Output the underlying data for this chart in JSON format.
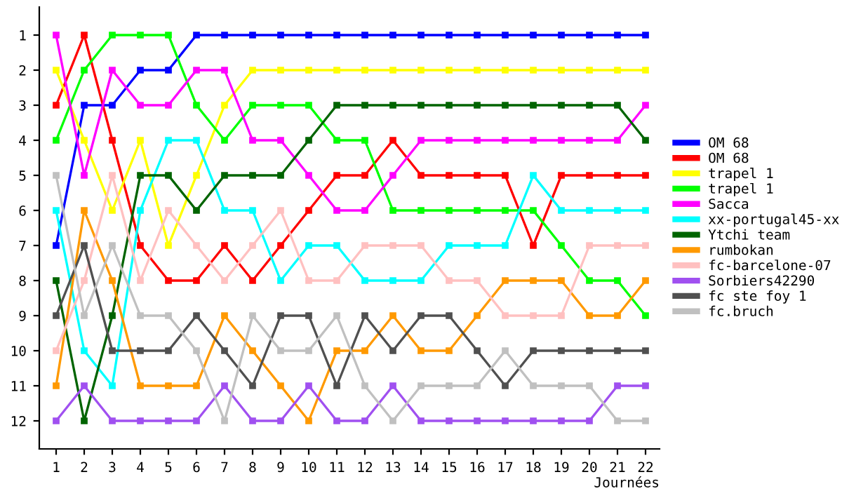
{
  "chart_data": {
    "type": "line",
    "xlabel": "Journées",
    "x": [
      1,
      2,
      3,
      4,
      5,
      6,
      7,
      8,
      9,
      10,
      11,
      12,
      13,
      14,
      15,
      16,
      17,
      18,
      19,
      20,
      21,
      22
    ],
    "xlim": [
      0.4,
      22.5
    ],
    "xticks": [
      1,
      2,
      3,
      4,
      5,
      6,
      7,
      8,
      9,
      10,
      11,
      12,
      13,
      14,
      15,
      16,
      17,
      18,
      19,
      20,
      21,
      22
    ],
    "ylim": [
      12.8,
      0.2
    ],
    "yticks": [
      1,
      2,
      3,
      4,
      5,
      6,
      7,
      8,
      9,
      10,
      11,
      12
    ],
    "grid": false,
    "legend": "right",
    "marker": "square",
    "line_style": "solid",
    "series": [
      {
        "name": "OM 68",
        "color": "#0000ff",
        "values": [
          7,
          3,
          3,
          2,
          2,
          1,
          1,
          1,
          1,
          1,
          1,
          1,
          1,
          1,
          1,
          1,
          1,
          1,
          1,
          1,
          1,
          1
        ]
      },
      {
        "name": "OM 68",
        "color": "#ff0000",
        "values": [
          3,
          1,
          4,
          7,
          8,
          8,
          7,
          8,
          7,
          6,
          5,
          5,
          4,
          5,
          5,
          5,
          5,
          7,
          5,
          5,
          5,
          5
        ]
      },
      {
        "name": "trapel 1",
        "color": "#ffff00",
        "values": [
          2,
          4,
          6,
          4,
          7,
          5,
          3,
          2,
          2,
          2,
          2,
          2,
          2,
          2,
          2,
          2,
          2,
          2,
          2,
          2,
          2,
          2
        ]
      },
      {
        "name": "trapel 1",
        "color": "#00ff00",
        "values": [
          4,
          2,
          1,
          1,
          1,
          3,
          4,
          3,
          3,
          3,
          4,
          4,
          6,
          6,
          6,
          6,
          6,
          6,
          7,
          8,
          8,
          9
        ]
      },
      {
        "name": "Sacca",
        "color": "#ff00ff",
        "values": [
          1,
          5,
          2,
          3,
          3,
          2,
          2,
          4,
          4,
          5,
          6,
          6,
          5,
          4,
          4,
          4,
          4,
          4,
          4,
          4,
          4,
          3
        ]
      },
      {
        "name": "xx-portugal45-xx",
        "color": "#00ffff",
        "values": [
          6,
          10,
          11,
          6,
          4,
          4,
          6,
          6,
          8,
          7,
          7,
          8,
          8,
          8,
          7,
          7,
          7,
          5,
          6,
          6,
          6,
          6
        ]
      },
      {
        "name": "Ytchi team",
        "color": "#006400",
        "values": [
          8,
          12,
          9,
          5,
          5,
          6,
          5,
          5,
          5,
          4,
          3,
          3,
          3,
          3,
          3,
          3,
          3,
          3,
          3,
          3,
          3,
          4
        ]
      },
      {
        "name": "rumbokan",
        "color": "#ff9900",
        "values": [
          11,
          6,
          8,
          11,
          11,
          11,
          9,
          10,
          11,
          12,
          10,
          10,
          9,
          10,
          10,
          9,
          8,
          8,
          8,
          9,
          9,
          8
        ]
      },
      {
        "name": "fc-barcelone-07",
        "color": "#ffc0c0",
        "values": [
          10,
          8,
          5,
          8,
          6,
          7,
          8,
          7,
          6,
          8,
          8,
          7,
          7,
          7,
          8,
          8,
          9,
          9,
          9,
          7,
          7,
          7
        ]
      },
      {
        "name": "Sorbiers42290",
        "color": "#a050f0",
        "values": [
          12,
          11,
          12,
          12,
          12,
          12,
          11,
          12,
          12,
          11,
          12,
          12,
          11,
          12,
          12,
          12,
          12,
          12,
          12,
          12,
          11,
          11
        ]
      },
      {
        "name": "fc ste foy 1",
        "color": "#505050",
        "values": [
          9,
          7,
          10,
          10,
          10,
          9,
          10,
          11,
          9,
          9,
          11,
          9,
          10,
          9,
          9,
          10,
          11,
          10,
          10,
          10,
          10,
          10
        ]
      },
      {
        "name": "fc.bruch",
        "color": "#c0c0c0",
        "values": [
          5,
          9,
          7,
          9,
          9,
          10,
          12,
          9,
          10,
          10,
          9,
          11,
          12,
          11,
          11,
          11,
          10,
          11,
          11,
          11,
          12,
          12
        ]
      }
    ]
  }
}
